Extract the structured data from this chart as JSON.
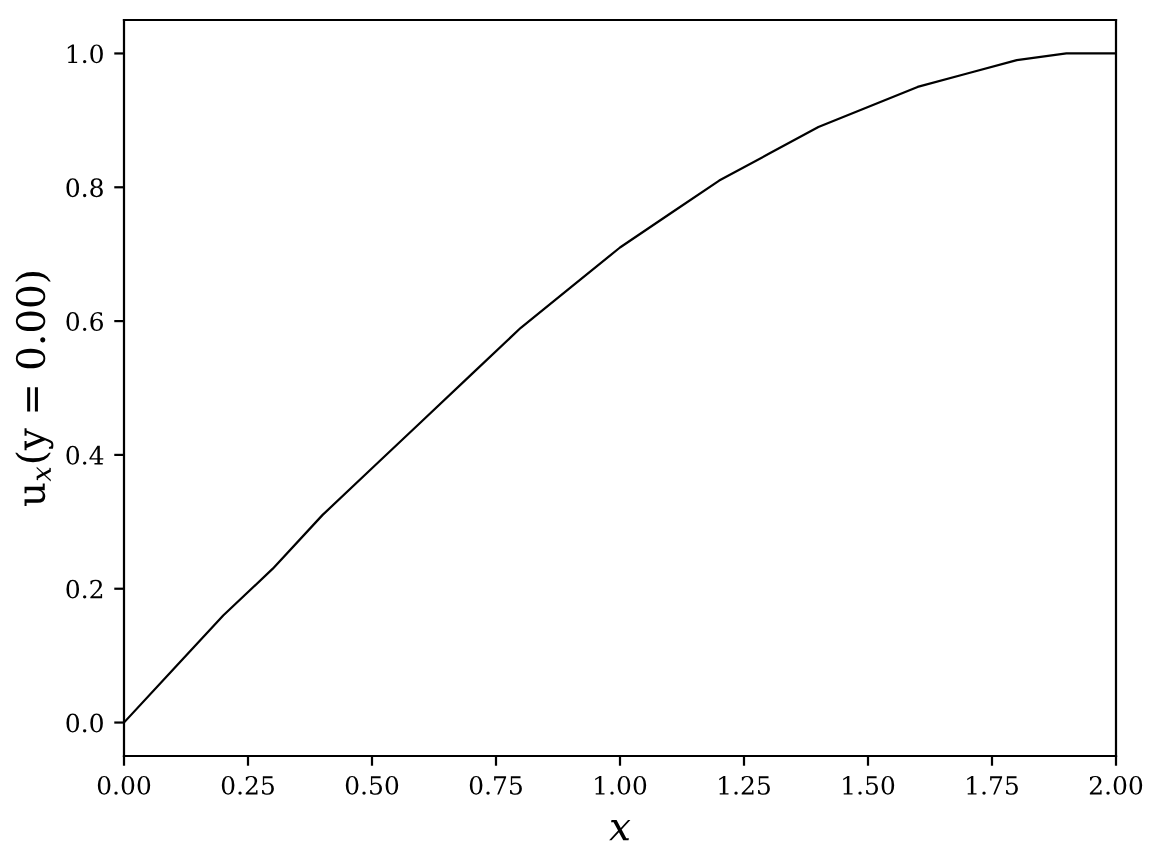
{
  "chart_data": {
    "type": "line",
    "xlabel": "x",
    "ylabel": "u$_{x}$(y = 0.00)",
    "x": [
      0,
      0.1,
      0.2,
      0.3,
      0.4,
      0.5,
      0.6,
      0.7,
      0.8,
      0.9,
      1.0,
      1.1,
      1.2,
      1.3,
      1.4,
      1.5,
      1.6,
      1.7,
      1.8,
      1.9,
      2.0
    ],
    "series": [
      {
        "color": "#000000",
        "values": [
          0,
          0.08,
          0.16,
          0.23,
          0.31,
          0.38,
          0.45,
          0.52,
          0.59,
          0.65,
          0.71,
          0.76,
          0.81,
          0.85,
          0.89,
          0.92,
          0.95,
          0.97,
          0.99,
          1.0,
          1.0
        ]
      }
    ],
    "xlim": [
      0,
      2
    ],
    "ylim": [
      -0.05,
      1.05
    ],
    "xticks": [
      {
        "value": 0,
        "label": "0.00"
      },
      {
        "value": 0.25,
        "label": "0.25"
      },
      {
        "value": 0.5,
        "label": "0.50"
      },
      {
        "value": 0.75,
        "label": "0.75"
      },
      {
        "value": 1,
        "label": "1.00"
      },
      {
        "value": 1.25,
        "label": "1.25"
      },
      {
        "value": 1.5,
        "label": "1.50"
      },
      {
        "value": 1.75,
        "label": "1.75"
      },
      {
        "value": 2,
        "label": "2.00"
      }
    ],
    "yticks": [
      {
        "value": 0,
        "label": "0.0"
      },
      {
        "value": 0.2,
        "label": "0.2"
      },
      {
        "value": 0.4,
        "label": "0.4"
      },
      {
        "value": 0.6,
        "label": "0.6"
      },
      {
        "value": 0.8,
        "label": "0.8"
      },
      {
        "value": 1,
        "label": "1.0"
      }
    ],
    "line_style": "solid"
  }
}
